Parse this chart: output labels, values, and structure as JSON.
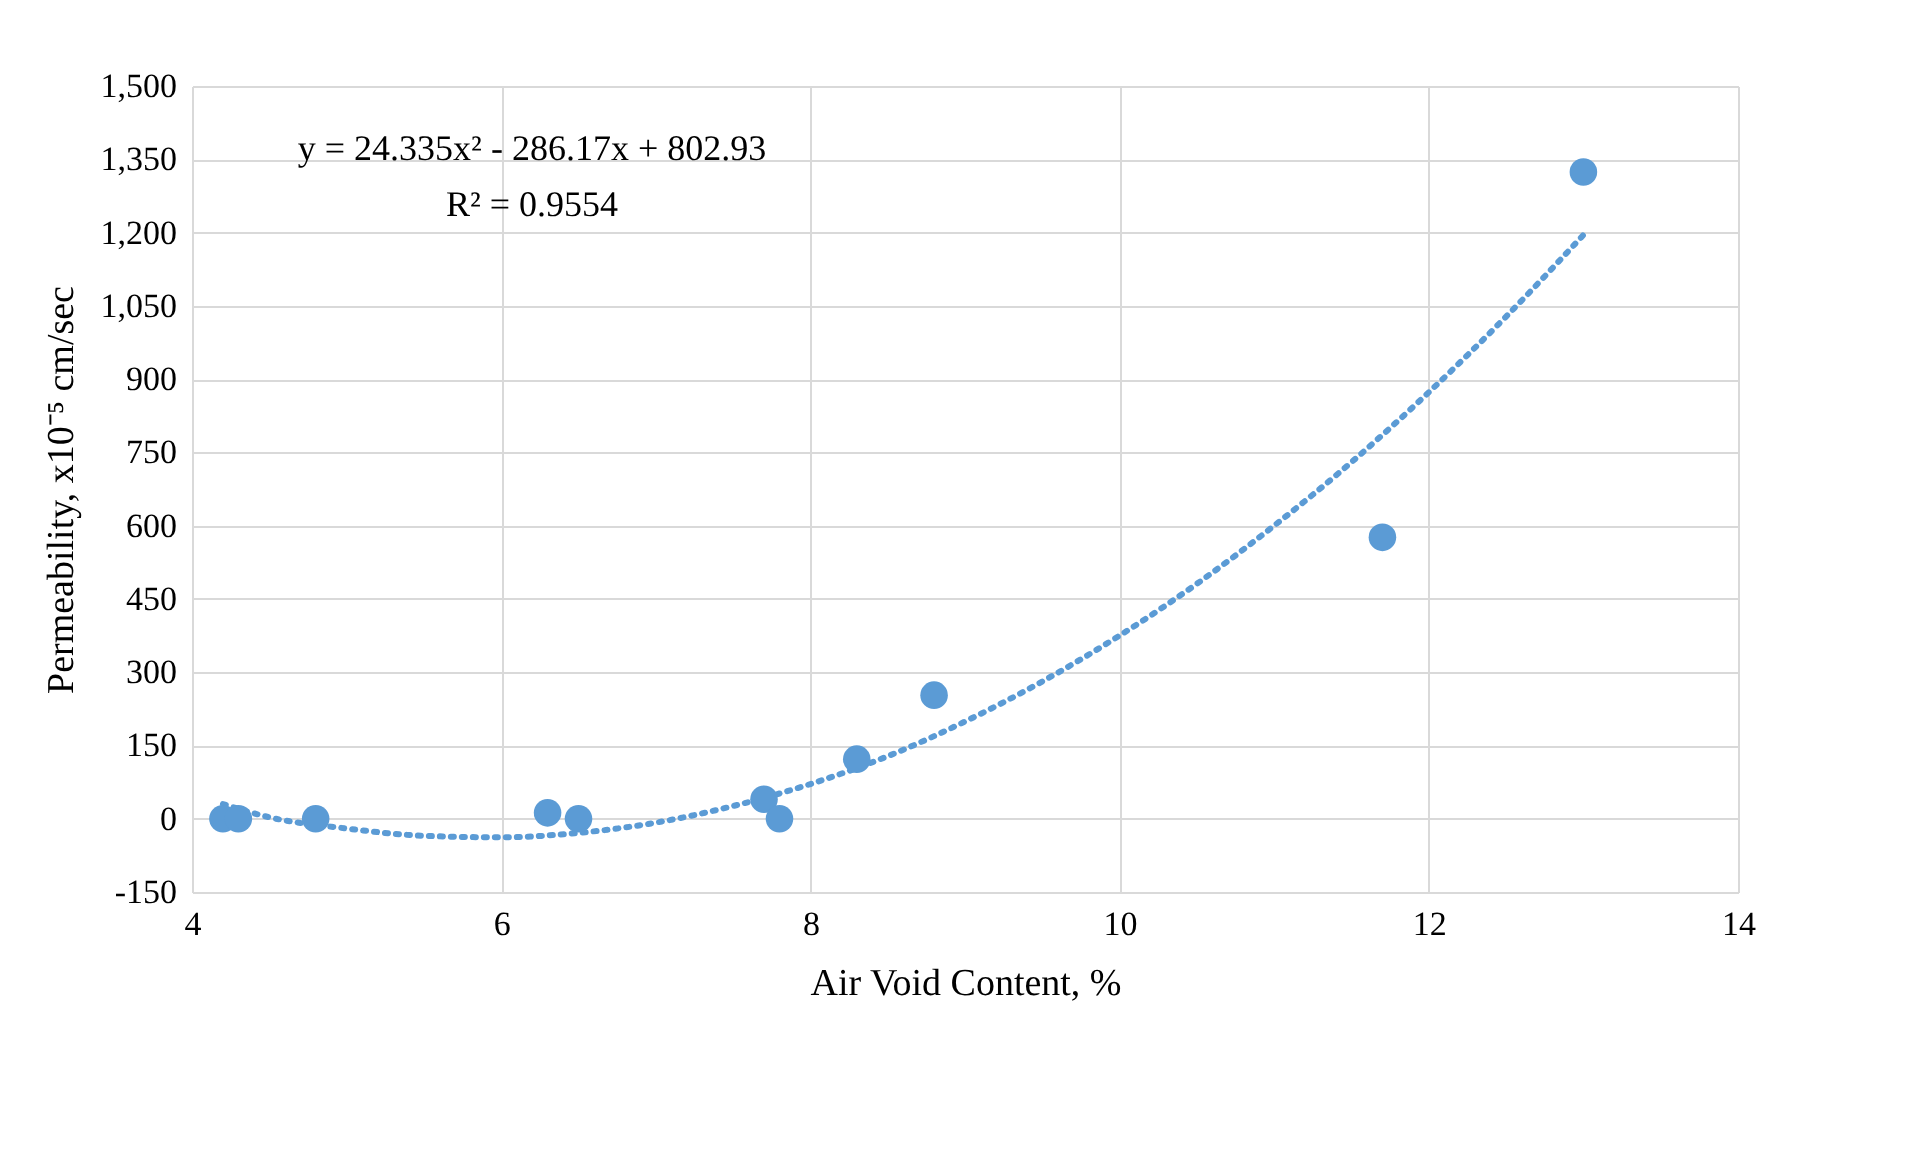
{
  "chart_data": {
    "type": "scatter",
    "xlabel": "Air Void Content, %",
    "ylabel": "Permeability, x10⁻⁵ cm/sec",
    "annotations": [
      "y = 24.335x² - 286.17x + 802.93",
      "R² = 0.9554"
    ],
    "xlim": [
      4,
      14
    ],
    "xticks": [
      4,
      6,
      8,
      10,
      12,
      14
    ],
    "ylim": [
      -150,
      1500
    ],
    "yticks": [
      -150,
      0,
      150,
      300,
      450,
      600,
      750,
      900,
      {
        "value": 1050,
        "label": "1,050"
      },
      {
        "value": 1200,
        "label": "1,200"
      },
      {
        "value": 1350,
        "label": "1,350"
      },
      {
        "value": 1500,
        "label": "1,500"
      }
    ],
    "grid": true,
    "line_style": "dotted",
    "series": [
      {
        "type": "scatter",
        "marker": "circle",
        "color": "#5b9bd5",
        "x": [
          4.2,
          4.3,
          4.8,
          6.3,
          6.5,
          7.7,
          7.8,
          8.3,
          8.8,
          11.7,
          13.0
        ],
        "values": [
          0,
          0,
          0,
          12,
          0,
          40,
          0,
          122,
          253,
          576,
          1324
        ]
      },
      {
        "type": "line",
        "marker": "none",
        "color": "#5b9bd5",
        "x": [
          4.2,
          4.5,
          5,
          5.5,
          6,
          6.5,
          7,
          7.5,
          8,
          8.5,
          9,
          9.5,
          10,
          10.5,
          11,
          11.5,
          12,
          12.5,
          13
        ],
        "values": [
          30,
          3,
          -20,
          -35,
          -38,
          -29,
          -8,
          26,
          71,
          128,
          199,
          281,
          375,
          481,
          600,
          730,
          873,
          1028,
          1195
        ]
      }
    ]
  }
}
